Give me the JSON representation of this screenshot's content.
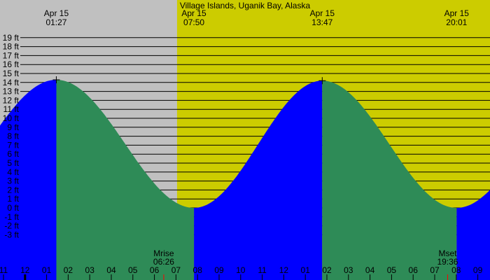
{
  "chart_data": {
    "type": "area",
    "title": "Village Islands, Uganik Bay, Alaska",
    "y_unit": "ft",
    "ylim": [
      -3,
      19
    ],
    "y_ticks": [
      "19 ft",
      "18 ft",
      "17 ft",
      "16 ft",
      "15 ft",
      "14 ft",
      "13 ft",
      "12 ft",
      "11 ft",
      "10 ft",
      "9 ft",
      "8 ft",
      "7 ft",
      "6 ft",
      "5 ft",
      "4 ft",
      "3 ft",
      "2 ft",
      "1 ft",
      "0 ft",
      "-1 ft",
      "-2 ft",
      "-3 ft"
    ],
    "x_ticks": [
      "11",
      "12",
      "01",
      "02",
      "03",
      "04",
      "05",
      "06",
      "07",
      "08",
      "09",
      "10",
      "11",
      "12",
      "01",
      "02",
      "03",
      "04",
      "05",
      "06",
      "07",
      "08",
      "09"
    ],
    "xlim": [
      "Apr 14 23:00",
      "Apr 15 21:00"
    ],
    "tides": [
      {
        "date": "Apr 15",
        "time": "01:27",
        "type": "high",
        "height_ft": 14.3
      },
      {
        "date": "Apr 15",
        "time": "07:50",
        "type": "low",
        "height_ft": 0.0
      },
      {
        "date": "Apr 15",
        "time": "13:47",
        "type": "high",
        "height_ft": 14.2
      },
      {
        "date": "Apr 15",
        "time": "20:01",
        "type": "low",
        "height_ft": 0.0
      }
    ],
    "daylight_start": "07:03",
    "moon": [
      {
        "label": "Mrise",
        "time": "06:26"
      },
      {
        "label": "Mset",
        "time": "19:36"
      }
    ],
    "colors": {
      "night": "#c0c0c0",
      "day": "#cccc00",
      "rising": "#0000ff",
      "falling": "#2e8b57",
      "moon_tick": "#ff0000"
    },
    "grid": true
  }
}
